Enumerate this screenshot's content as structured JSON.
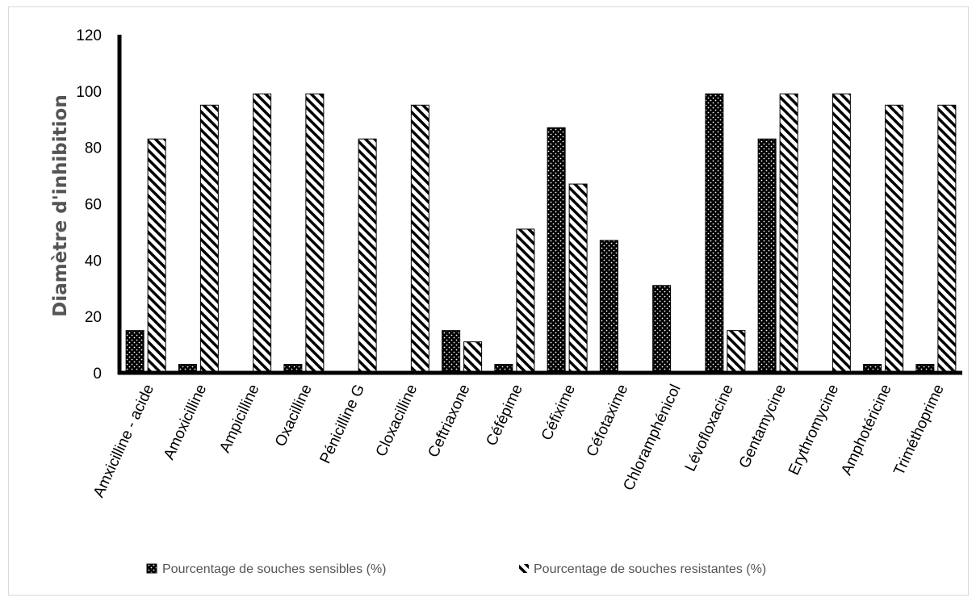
{
  "chart_data": {
    "type": "bar",
    "title": "",
    "xlabel": "",
    "ylabel": "Diamètre d'inhibition",
    "ylim": [
      0,
      120
    ],
    "yticks": [
      0,
      20,
      40,
      60,
      80,
      100,
      120
    ],
    "grid": false,
    "legend_position": "bottom",
    "categories": [
      "Amxicilline - acide",
      "Amoxicilline",
      "Ampicilline",
      "Oxacilline",
      "Pénicilline G",
      "Cloxacilline",
      "Ceftriaxone",
      "Céfépime",
      "Céfixime",
      "Céfotaxime",
      "Chloramphénicol",
      "Lévofloxacine",
      "Gentamycine",
      "Erythromycine",
      "Amphotéricine",
      "Triméthoprime"
    ],
    "series": [
      {
        "name": "Pourcentage de souches sensibles (%)",
        "pattern": "dots",
        "values": [
          15,
          3,
          0,
          3,
          0,
          0,
          15,
          3,
          87,
          47,
          31,
          99,
          83,
          0,
          3,
          3
        ]
      },
      {
        "name": "Pourcentage de souches resistantes (%)",
        "pattern": "hatch",
        "values": [
          83,
          95,
          99,
          99,
          83,
          95,
          11,
          51,
          67,
          0,
          0,
          15,
          99,
          99,
          95,
          95
        ]
      }
    ]
  },
  "colors": {
    "bar_fill": "#000000",
    "pattern_line": "#ffffff",
    "axis": "#000000",
    "ylabel": "#555555",
    "legend_text": "#555555",
    "border": "#d9d9d9"
  }
}
